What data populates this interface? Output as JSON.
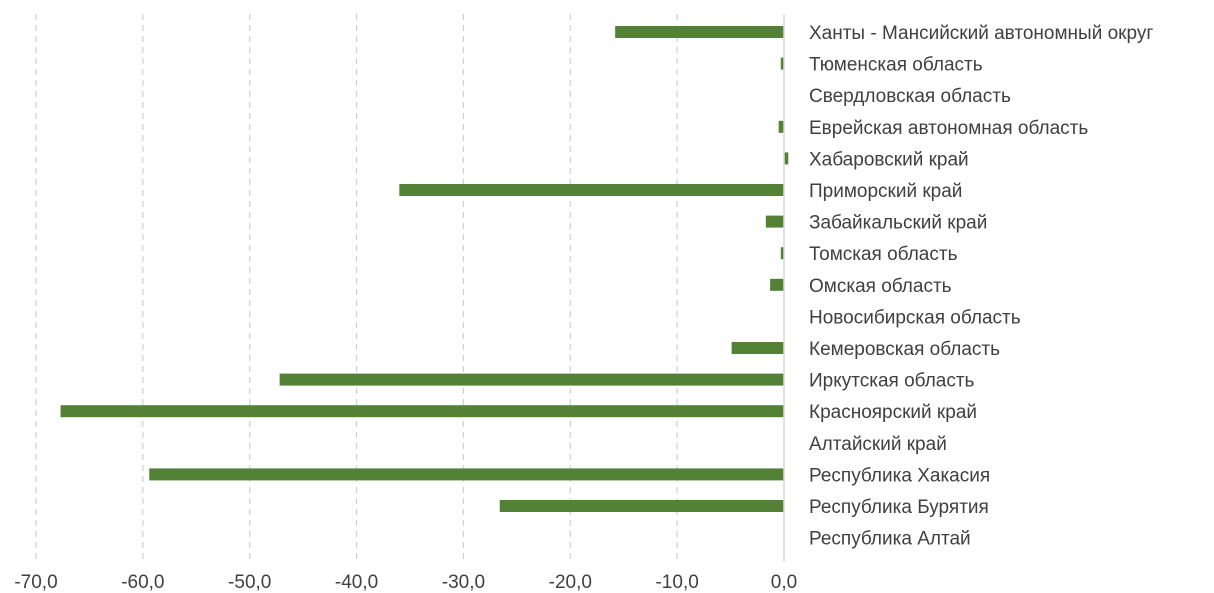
{
  "chart_data": {
    "type": "bar",
    "orientation": "horizontal",
    "title": "",
    "xlabel": "",
    "ylabel": "",
    "categories": [
      "Ханты - Мансийский автономный округ",
      "Тюменская область",
      "Свердловская область",
      "Еврейская автономная область",
      "Хабаровский край",
      "Приморский край",
      "Забайкальский край",
      "Томская область",
      "Омская область",
      "Новосибирская область",
      "Кемеровская область",
      "Иркутская область",
      "Красноярский край",
      "Алтайский край",
      "Республика Хакасия",
      "Республика Бурятия",
      "Республика Алтай"
    ],
    "values": [
      -15.8,
      -0.3,
      0.0,
      -0.5,
      0.4,
      -36.0,
      -1.7,
      -0.3,
      -1.3,
      0.0,
      -4.9,
      -47.2,
      -67.7,
      0.0,
      -59.4,
      -26.6,
      0.0
    ],
    "xlim": [
      -70,
      0
    ],
    "xticks": [
      -70,
      -60,
      -50,
      -40,
      -30,
      -20,
      -10,
      0
    ],
    "xtick_labels": [
      "-70,0",
      "-60,0",
      "-50,0",
      "-40,0",
      "-30,0",
      "-20,0",
      "-10,0",
      "0,0"
    ],
    "grid": true,
    "legend": "none",
    "bar_color": "#538135"
  }
}
